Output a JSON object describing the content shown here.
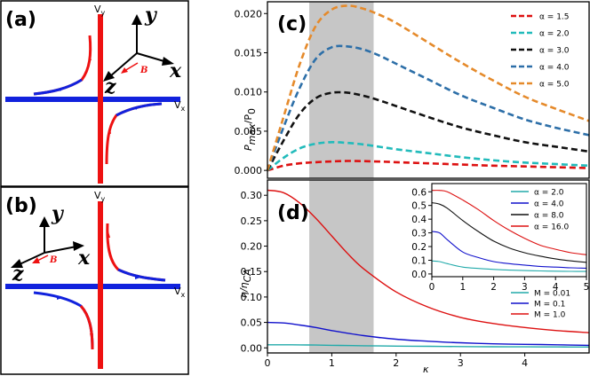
{
  "figure": {
    "panel_a": {
      "label": "(a)",
      "vertical_axis_label": "V",
      "vertical_axis_sub": "y",
      "horizontal_axis_label": "V",
      "horizontal_axis_sub": "x",
      "triad": {
        "y": "y",
        "x": "x",
        "z": "z",
        "b": "B"
      }
    },
    "panel_b": {
      "label": "(b)",
      "vertical_axis_label": "V",
      "vertical_axis_sub": "y",
      "horizontal_axis_label": "V",
      "horizontal_axis_sub": "x",
      "triad": {
        "y": "y",
        "x": "x",
        "z": "z",
        "b": "B"
      }
    },
    "colors": {
      "red_curve": "#ee1111",
      "blue_curve": "#1122dd",
      "shade": "#c6c6c6"
    }
  },
  "chart_data": [
    {
      "id": "c",
      "label": "(c)",
      "type": "line",
      "ylabel": "P_max/P_0",
      "ylabel_main": "P",
      "ylabel_sub": "max",
      "ylabel_rest": "/P",
      "ylabel_sub2": "0",
      "xlim": [
        0,
        5
      ],
      "ylim": [
        -0.001,
        0.0215
      ],
      "yticks": [
        "0.000",
        "0.005",
        "0.010",
        "0.015",
        "0.020"
      ],
      "ytick_values": [
        0,
        0.005,
        0.01,
        0.015,
        0.02
      ],
      "shade": [
        0.65,
        1.65
      ],
      "legend_position": "top-right",
      "style": "dashed",
      "series": [
        {
          "name": "α = 1.5",
          "color": "#dd1111",
          "x": [
            0,
            0.25,
            0.5,
            0.75,
            1,
            1.25,
            1.5,
            1.75,
            2,
            2.5,
            3,
            3.5,
            4,
            4.5,
            5
          ],
          "values": [
            0,
            0.0006,
            0.0009,
            0.00105,
            0.00115,
            0.0012,
            0.00118,
            0.00112,
            0.00105,
            0.0009,
            0.00075,
            0.0006,
            0.0005,
            0.0004,
            0.0003
          ]
        },
        {
          "name": "α = 2.0",
          "color": "#22bbbb",
          "x": [
            0,
            0.25,
            0.5,
            0.75,
            1,
            1.25,
            1.5,
            1.75,
            2,
            2.5,
            3,
            3.5,
            4,
            4.5,
            5
          ],
          "values": [
            0,
            0.0016,
            0.0028,
            0.0034,
            0.0036,
            0.0035,
            0.0033,
            0.003,
            0.0027,
            0.0022,
            0.0017,
            0.0013,
            0.001,
            0.0008,
            0.0006
          ]
        },
        {
          "name": "α = 3.0",
          "color": "#111111",
          "x": [
            0,
            0.25,
            0.5,
            0.75,
            1,
            1.25,
            1.5,
            1.75,
            2,
            2.5,
            3,
            3.5,
            4,
            4.5,
            5
          ],
          "values": [
            0,
            0.0038,
            0.0072,
            0.0092,
            0.0099,
            0.0099,
            0.0095,
            0.0089,
            0.0082,
            0.0068,
            0.0055,
            0.0045,
            0.0036,
            0.003,
            0.0024
          ]
        },
        {
          "name": "α = 4.0",
          "color": "#2d6fa8",
          "x": [
            0,
            0.25,
            0.5,
            0.75,
            1,
            1.25,
            1.5,
            1.75,
            2,
            2.5,
            3,
            3.5,
            4,
            4.5,
            5
          ],
          "values": [
            0,
            0.0055,
            0.0105,
            0.0142,
            0.0157,
            0.0158,
            0.0154,
            0.0146,
            0.0136,
            0.0116,
            0.0096,
            0.008,
            0.0065,
            0.0054,
            0.0045
          ]
        },
        {
          "name": "α = 5.0",
          "color": "#e58a2b",
          "x": [
            0,
            0.25,
            0.5,
            0.75,
            1,
            1.25,
            1.5,
            1.75,
            2,
            2.5,
            3,
            3.5,
            4,
            4.5,
            5
          ],
          "values": [
            0,
            0.0068,
            0.0135,
            0.0184,
            0.0205,
            0.021,
            0.0206,
            0.0198,
            0.0188,
            0.0163,
            0.0138,
            0.0115,
            0.0094,
            0.0078,
            0.0063
          ]
        }
      ]
    },
    {
      "id": "d",
      "label": "(d)",
      "type": "line",
      "xlabel": "κ",
      "ylabel": "η/η_CA",
      "ylabel_main": "η/η",
      "ylabel_sub": "CA",
      "xlim": [
        0,
        5
      ],
      "ylim": [
        -0.01,
        0.33
      ],
      "xticks": [
        "0",
        "1",
        "2",
        "3",
        "4"
      ],
      "xtick_values": [
        0,
        1,
        2,
        3,
        4
      ],
      "yticks": [
        "0.00",
        "0.05",
        "0.10",
        "0.15",
        "0.20",
        "0.25",
        "0.30"
      ],
      "ytick_values": [
        0,
        0.05,
        0.1,
        0.15,
        0.2,
        0.25,
        0.3
      ],
      "shade": [
        0.65,
        1.65
      ],
      "legend_position": "lower-right",
      "style": "solid",
      "series": [
        {
          "name": "M = 0.01",
          "color": "#22aaaa",
          "x": [
            0,
            0.25,
            0.5,
            0.75,
            1,
            1.5,
            2,
            2.5,
            3,
            3.5,
            4,
            4.5,
            5
          ],
          "values": [
            0.006,
            0.006,
            0.0058,
            0.0055,
            0.005,
            0.0042,
            0.0035,
            0.003,
            0.0025,
            0.0022,
            0.002,
            0.0018,
            0.0016
          ]
        },
        {
          "name": "M = 0.1",
          "color": "#1111cc",
          "x": [
            0,
            0.25,
            0.5,
            0.75,
            1,
            1.5,
            2,
            2.5,
            3,
            3.5,
            4,
            4.5,
            5
          ],
          "values": [
            0.05,
            0.049,
            0.045,
            0.04,
            0.034,
            0.024,
            0.017,
            0.013,
            0.01,
            0.008,
            0.007,
            0.006,
            0.005
          ]
        },
        {
          "name": "M = 1.0",
          "color": "#dd1111",
          "x": [
            0,
            0.25,
            0.5,
            0.75,
            1,
            1.25,
            1.5,
            2,
            2.5,
            3,
            3.5,
            4,
            4.5,
            5
          ],
          "values": [
            0.31,
            0.305,
            0.285,
            0.255,
            0.22,
            0.185,
            0.155,
            0.11,
            0.08,
            0.06,
            0.048,
            0.04,
            0.034,
            0.03
          ]
        }
      ]
    },
    {
      "id": "d-inset",
      "label": "",
      "type": "line",
      "xlim": [
        0,
        5
      ],
      "ylim": [
        -0.02,
        0.66
      ],
      "xticks": [
        "0",
        "1",
        "2",
        "3",
        "4",
        "5"
      ],
      "xtick_values": [
        0,
        1,
        2,
        3,
        4,
        5
      ],
      "yticks": [
        "0.0",
        "0.1",
        "0.2",
        "0.3",
        "0.4",
        "0.5",
        "0.6"
      ],
      "ytick_values": [
        0,
        0.1,
        0.2,
        0.3,
        0.4,
        0.5,
        0.6
      ],
      "legend_position": "top-right",
      "style": "solid",
      "series": [
        {
          "name": "α = 2.0",
          "color": "#22aaaa",
          "x": [
            0,
            0.25,
            0.5,
            1,
            1.5,
            2,
            2.5,
            3,
            3.5,
            4,
            4.5,
            5
          ],
          "values": [
            0.095,
            0.09,
            0.075,
            0.05,
            0.04,
            0.033,
            0.028,
            0.025,
            0.022,
            0.02,
            0.019,
            0.018
          ]
        },
        {
          "name": "α = 4.0",
          "color": "#1111cc",
          "x": [
            0,
            0.25,
            0.5,
            1,
            1.5,
            2,
            2.5,
            3,
            3.5,
            4,
            4.5,
            5
          ],
          "values": [
            0.31,
            0.3,
            0.25,
            0.16,
            0.12,
            0.09,
            0.075,
            0.065,
            0.055,
            0.05,
            0.045,
            0.042
          ]
        },
        {
          "name": "α = 8.0",
          "color": "#111111",
          "x": [
            0,
            0.25,
            0.5,
            1,
            1.5,
            2,
            2.5,
            3,
            3.5,
            4,
            4.5,
            5
          ],
          "values": [
            0.52,
            0.51,
            0.48,
            0.39,
            0.31,
            0.24,
            0.19,
            0.155,
            0.13,
            0.11,
            0.095,
            0.085
          ]
        },
        {
          "name": "α = 16.0",
          "color": "#dd1111",
          "x": [
            0,
            0.25,
            0.5,
            1,
            1.5,
            2,
            2.5,
            3,
            3.5,
            4,
            4.5,
            5
          ],
          "values": [
            0.61,
            0.61,
            0.6,
            0.54,
            0.47,
            0.39,
            0.32,
            0.26,
            0.21,
            0.18,
            0.155,
            0.14
          ]
        }
      ]
    }
  ]
}
